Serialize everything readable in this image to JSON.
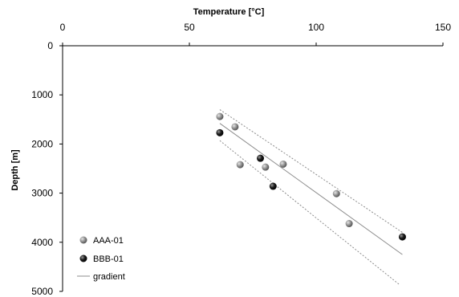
{
  "chart_data": {
    "type": "scatter",
    "title": "",
    "xlabel": "Temperature [°C]",
    "ylabel": "Depth [m]",
    "x_axis_position": "top",
    "y_axis_inverted": true,
    "xlim": [
      0,
      150
    ],
    "ylim": [
      0,
      5000
    ],
    "x_ticks": [
      "0",
      "50",
      "100",
      "150"
    ],
    "y_ticks": [
      "0",
      "1000",
      "2000",
      "3000",
      "4000",
      "5000"
    ],
    "grid": false,
    "legend_position": "bottom-left",
    "series": [
      {
        "name": "AAA-01",
        "kind": "scatter",
        "marker": "sphere",
        "color": "#8c8c8c",
        "points": [
          {
            "x": 62,
            "y": 1440
          },
          {
            "x": 68,
            "y": 1650
          },
          {
            "x": 70,
            "y": 2420
          },
          {
            "x": 80,
            "y": 2470
          },
          {
            "x": 87,
            "y": 2410
          },
          {
            "x": 108,
            "y": 3010
          },
          {
            "x": 113,
            "y": 3620
          }
        ]
      },
      {
        "name": "BBB-01",
        "kind": "scatter",
        "marker": "sphere",
        "color": "#1a1a1a",
        "points": [
          {
            "x": 62,
            "y": 1770
          },
          {
            "x": 78,
            "y": 2290
          },
          {
            "x": 83,
            "y": 2860
          },
          {
            "x": 134,
            "y": 3890
          }
        ]
      },
      {
        "name": "gradient",
        "kind": "line",
        "style": "solid",
        "color": "#8c8c8c",
        "points": [
          {
            "x": 62,
            "y": 1580
          },
          {
            "x": 134,
            "y": 4250
          }
        ]
      },
      {
        "kind": "line",
        "style": "dashed",
        "color": "#8c8c8c",
        "points": [
          {
            "x": 62,
            "y": 1300
          },
          {
            "x": 134,
            "y": 3800
          }
        ]
      },
      {
        "kind": "line",
        "style": "dashed",
        "color": "#8c8c8c",
        "points": [
          {
            "x": 62,
            "y": 1930
          },
          {
            "x": 133,
            "y": 4870
          }
        ]
      }
    ]
  }
}
